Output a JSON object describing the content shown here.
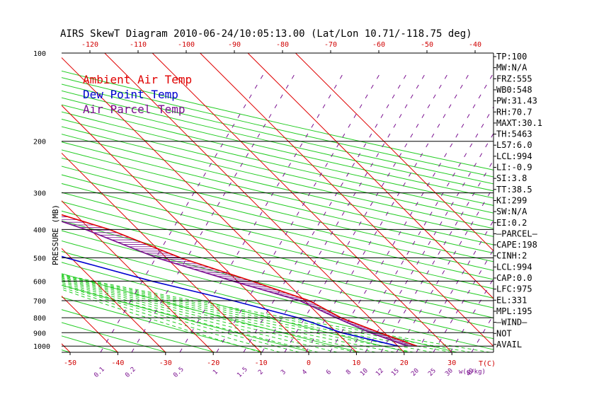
{
  "chart_data": {
    "type": "line",
    "title": "AIRS SkewT Diagram 2010-06-24/10:05:13.00 (Lat/Lon 10.71/-118.75 deg)",
    "ylabel": "PRESSURE (MB)",
    "xlabel_bottom": "T(C)",
    "xlabel_mix": "w(g/kg)",
    "pressure_ticks": [
      "100",
      "200",
      "300",
      "400",
      "500",
      "600",
      "700",
      "800",
      "900",
      "1000"
    ],
    "top_ticks": [
      "-120",
      "-110",
      "-100",
      "-90",
      "-80",
      "-70",
      "-60",
      "-50",
      "-40"
    ],
    "bottom_ticks": [
      "-50",
      "-40",
      "-30",
      "-20",
      "-10",
      "0",
      "10",
      "20",
      "30"
    ],
    "mixing_ticks": [
      "0.1",
      "0.2",
      "0.5",
      "1",
      "1.5",
      "2",
      "3",
      "4",
      "6",
      "8",
      "10",
      "12",
      "15",
      "20",
      "25",
      "30",
      "40"
    ],
    "legend": [
      {
        "label": "Ambient Air Temp",
        "color": "#e00000"
      },
      {
        "label": "Dew Point Temp",
        "color": "#0000d0"
      },
      {
        "label": "Air Parcel Temp",
        "color": "#7a0f8f"
      }
    ],
    "series": [
      {
        "name": "Ambient Air Temp",
        "color": "#e00000",
        "points": [
          [
            100,
            -80
          ],
          [
            150,
            -80
          ],
          [
            200,
            -64
          ],
          [
            250,
            -50
          ],
          [
            300,
            -36
          ],
          [
            350,
            -24
          ],
          [
            400,
            -16
          ],
          [
            500,
            -7
          ],
          [
            600,
            3
          ],
          [
            700,
            11
          ],
          [
            800,
            14
          ],
          [
            900,
            19
          ],
          [
            1000,
            24
          ]
        ]
      },
      {
        "name": "Dew Point Temp",
        "color": "#0000d0",
        "points": [
          [
            100,
            -87
          ],
          [
            150,
            -89
          ],
          [
            200,
            -84
          ],
          [
            250,
            -78
          ],
          [
            300,
            -65
          ],
          [
            350,
            -54
          ],
          [
            400,
            -44
          ],
          [
            500,
            -31
          ],
          [
            600,
            -18
          ],
          [
            700,
            -5
          ],
          [
            800,
            5
          ],
          [
            900,
            11
          ],
          [
            1000,
            20
          ]
        ]
      },
      {
        "name": "Air Parcel Temp",
        "color": "#7a0f8f",
        "points": [
          [
            100,
            -109
          ],
          [
            150,
            -87
          ],
          [
            200,
            -68
          ],
          [
            250,
            -53
          ],
          [
            300,
            -39
          ],
          [
            350,
            -28
          ],
          [
            400,
            -21
          ],
          [
            500,
            -12
          ],
          [
            600,
            -1
          ],
          [
            700,
            9
          ],
          [
            800,
            13
          ],
          [
            900,
            17
          ],
          [
            1000,
            22
          ]
        ]
      }
    ],
    "indices": [
      "TP:100",
      "MW:N/A",
      "FRZ:555",
      "WB0:548",
      "PW:31.43",
      "RH:70.7",
      "MAXT:30.1",
      "TH:5463",
      "L57:6.0",
      "LCL:994",
      "LI:-0.9",
      "SI:3.8",
      "TT:38.5",
      "KI:299",
      "SW:N/A",
      "EI:0.2",
      "–PARCEL–",
      "CAPE:198",
      "CINH:2",
      "LCL:994",
      "CAP:0.0",
      "LFC:975",
      "EL:331",
      "MPL:195",
      "–WIND–",
      "NOT",
      "AVAIL"
    ]
  }
}
